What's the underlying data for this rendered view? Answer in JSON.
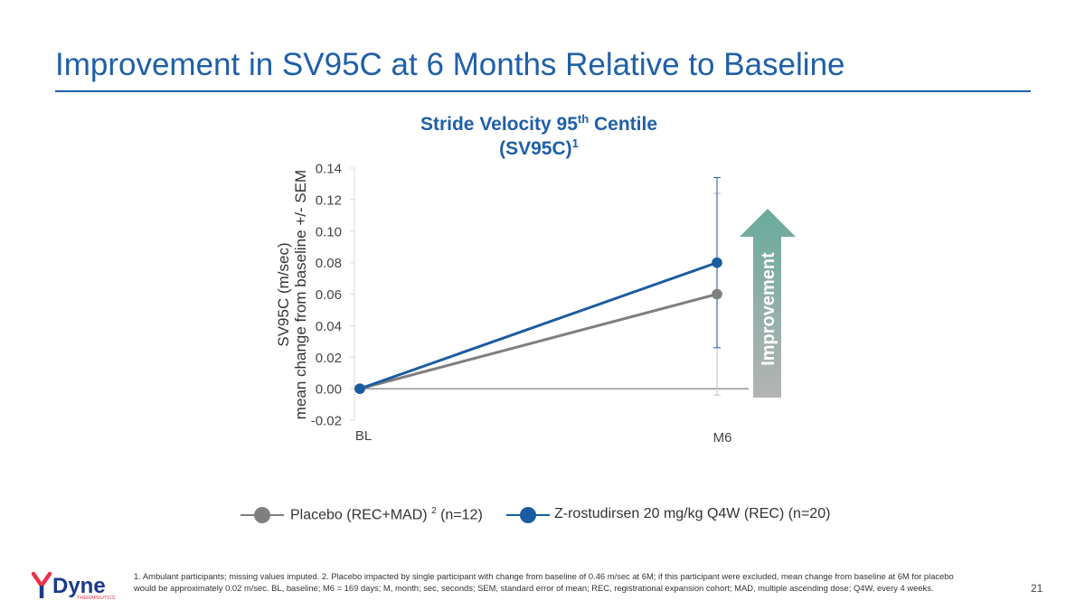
{
  "slide": {
    "title": "Improvement in SV95C at 6 Months Relative to Baseline",
    "page_number": "21",
    "footnote": "1. Ambulant participants; missing values imputed. 2. Placebo impacted by single participant with change from baseline of 0.46 m/sec at 6M; if this participant were excluded, mean change from baseline at 6M for placebo would be approximately 0.02 m/sec. BL, baseline; M6 = 169 days; M, month; sec, seconds; SEM, standard error of mean; REC, registrational expansion cohort; MAD, multiple ascending dose; Q4W, every 4 weeks.",
    "logo": {
      "name": "Dyne",
      "sub": "THERAPEUTICS"
    }
  },
  "chart_data": {
    "type": "line",
    "title_main": "Stride Velocity 95",
    "title_sup": "th",
    "title_tail": " Centile",
    "title_line2": "(SV95C)",
    "title_line2_sup": "1",
    "ylabel_line1": "SV95C (m/sec)",
    "ylabel_line2": "mean change from baseline +/- SEM",
    "xlabel": "",
    "categories": [
      "BL",
      "M6"
    ],
    "ylim": [
      -0.02,
      0.14
    ],
    "yticks": [
      -0.02,
      0.0,
      0.02,
      0.04,
      0.06,
      0.08,
      0.1,
      0.12,
      0.14
    ],
    "ytick_labels": [
      "-0.02",
      "0.00",
      "0.02",
      "0.04",
      "0.06",
      "0.08",
      "0.10",
      "0.12",
      "0.14"
    ],
    "series": [
      {
        "name": "Placebo (REC+MAD)",
        "legend_sup": "2",
        "legend_tail": " (n=12)",
        "color": "#7f7f7f",
        "values": [
          0.0,
          0.06
        ],
        "error_low": [
          null,
          -0.004
        ],
        "error_high": [
          null,
          0.124
        ]
      },
      {
        "name": "Z-rostudirsen 20 mg/kg Q4W (REC)",
        "legend_sup": "",
        "legend_tail": " (n=20)",
        "color": "#1b5ba0",
        "values": [
          0.0,
          0.08
        ],
        "error_low": [
          null,
          0.026
        ],
        "error_high": [
          null,
          0.134
        ]
      }
    ],
    "annotation": {
      "text": "Improvement",
      "direction": "up",
      "color_top": "#6aaa9c",
      "color_bottom": "#b4b4b4"
    }
  }
}
